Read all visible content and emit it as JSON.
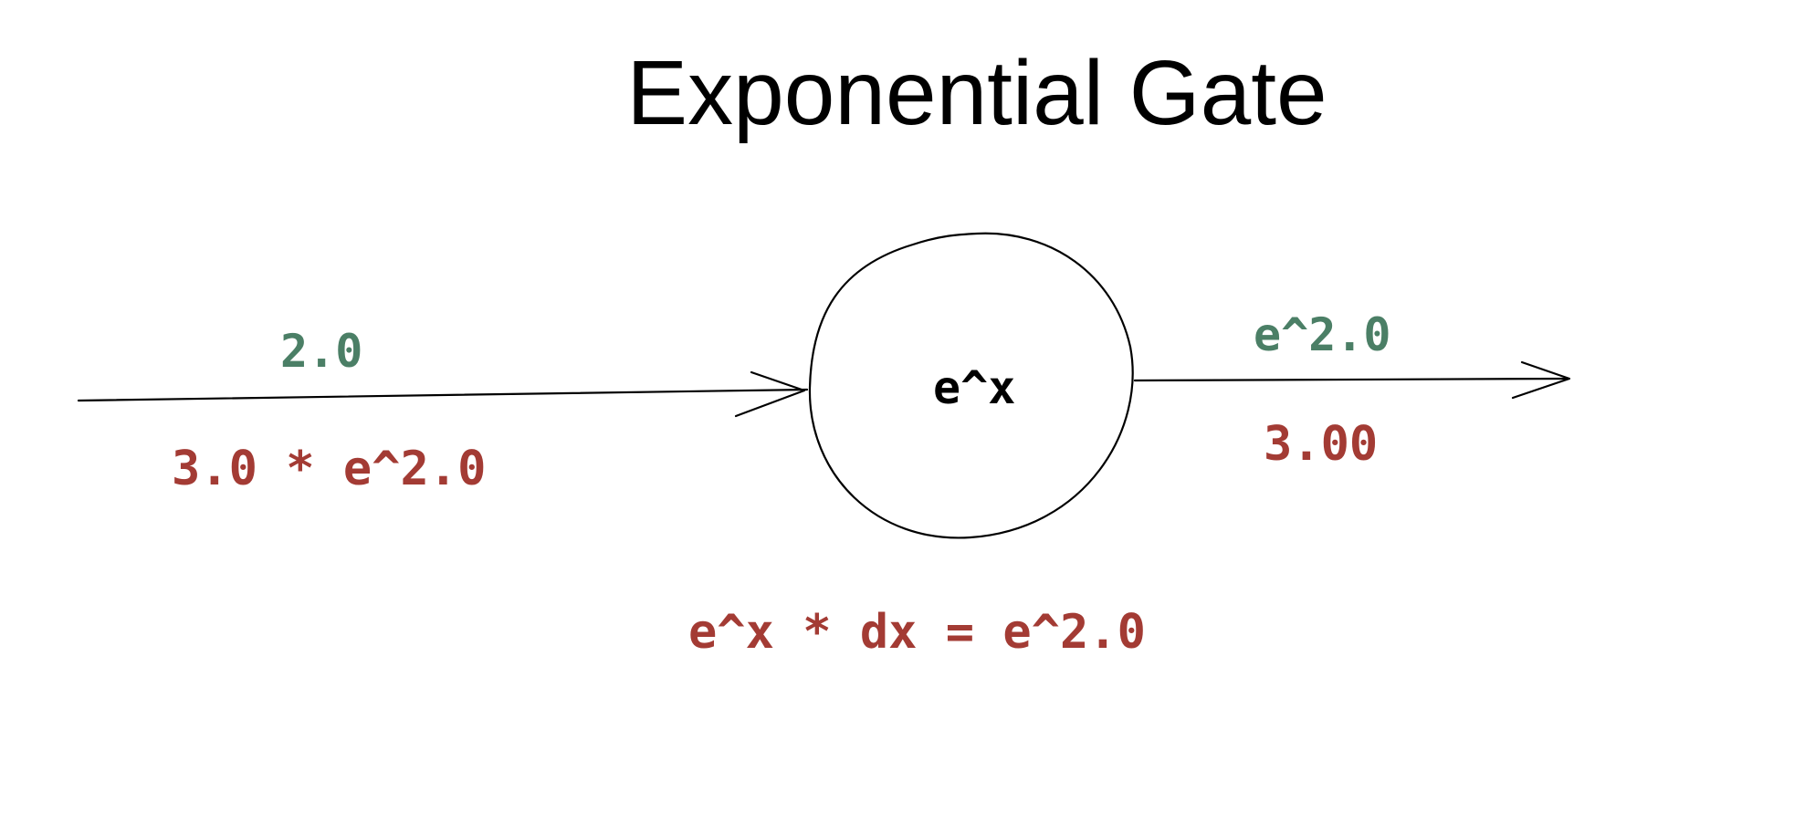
{
  "title": "Exponential Gate",
  "gate": {
    "label": "e^x",
    "local_gradient": "e^x * dx = e^2.0"
  },
  "input_edge": {
    "forward_value": "2.0",
    "backward_value": "3.0 * e^2.0"
  },
  "output_edge": {
    "forward_value": "e^2.0",
    "backward_value": "3.00"
  },
  "colors": {
    "forward": "#4b7f66",
    "backward": "#a33b34",
    "stroke": "#000000"
  }
}
